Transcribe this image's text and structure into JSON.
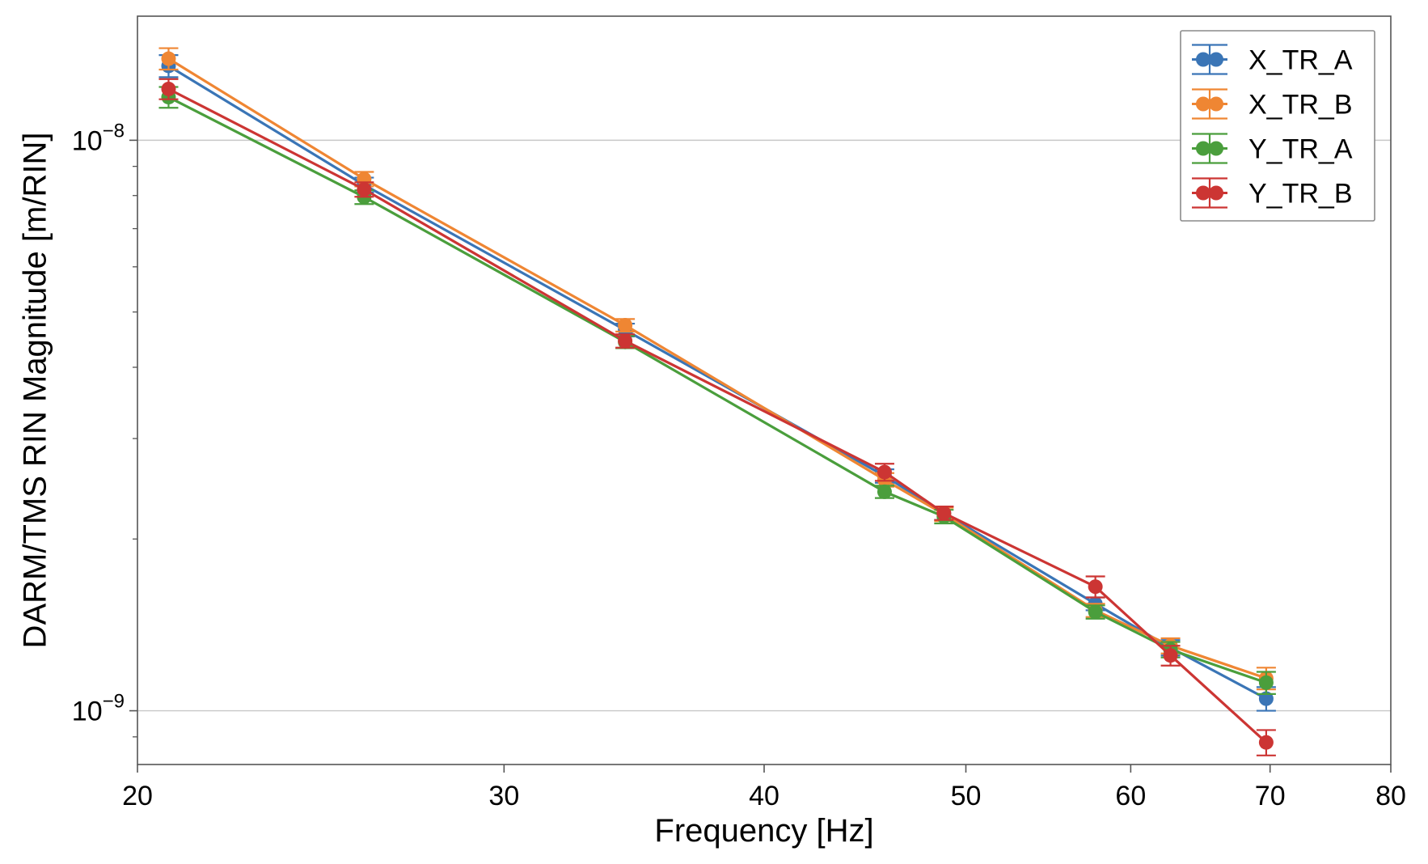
{
  "chart_data": {
    "type": "scatter",
    "title": "",
    "xlabel": "Frequency [Hz]",
    "ylabel": "DARM/TMS RIN Magnitude [m/RIN]",
    "xscale": "log",
    "yscale": "log",
    "xlim": [
      20,
      80
    ],
    "ylim": [
      8.05e-10,
      1.65e-08
    ],
    "x_ticks": [
      20,
      30,
      40,
      50,
      60,
      70,
      80
    ],
    "x_tick_labels": [
      "20",
      "30",
      "40",
      "50",
      "60",
      "70",
      "80"
    ],
    "y_ticks": [
      1e-09,
      1e-08
    ],
    "y_tick_labels": [
      {
        "base": "10",
        "exp": "−9"
      },
      {
        "base": "10",
        "exp": "−8"
      }
    ],
    "grid": "horizontal-major",
    "legend_position": "upper right",
    "x": [
      20.7,
      25.7,
      34.3,
      45.7,
      48.8,
      57.7,
      62.7,
      69.7
    ],
    "series": [
      {
        "name": "X_TR_A",
        "color": "#3a75b6",
        "values": [
          1.35e-08,
          8.35e-09,
          4.65e-09,
          2.58e-09,
          2.22e-09,
          1.54e-09,
          1.29e-09,
          1.05e-09
        ],
        "errors": [
          6e-10,
          2.5e-10,
          1.2e-10,
          7e-11,
          6e-11,
          4e-11,
          4e-11,
          5e-11
        ]
      },
      {
        "name": "X_TR_B",
        "color": "#ef8633",
        "values": [
          1.39e-08,
          8.55e-09,
          4.74e-09,
          2.54e-09,
          2.21e-09,
          1.5e-09,
          1.3e-09,
          1.14e-09
        ],
        "errors": [
          6e-10,
          2.5e-10,
          1.2e-10,
          7e-11,
          6e-11,
          4e-11,
          4e-11,
          5e-11
        ]
      },
      {
        "name": "Y_TR_A",
        "color": "#4a9e3c",
        "values": [
          1.19e-08,
          7.95e-09,
          4.43e-09,
          2.42e-09,
          2.19e-09,
          1.49e-09,
          1.28e-09,
          1.12e-09
        ],
        "errors": [
          5e-10,
          2.2e-10,
          1.1e-10,
          6e-11,
          6e-11,
          4e-11,
          4e-11,
          5e-11
        ]
      },
      {
        "name": "Y_TR_B",
        "color": "#cc3533",
        "values": [
          1.23e-08,
          8.2e-09,
          4.45e-09,
          2.62e-09,
          2.22e-09,
          1.65e-09,
          1.25e-09,
          8.8e-10
        ],
        "errors": [
          5e-10,
          2.4e-10,
          1.2e-10,
          9e-11,
          6e-11,
          7e-11,
          5e-11,
          4.5e-11
        ]
      }
    ]
  }
}
